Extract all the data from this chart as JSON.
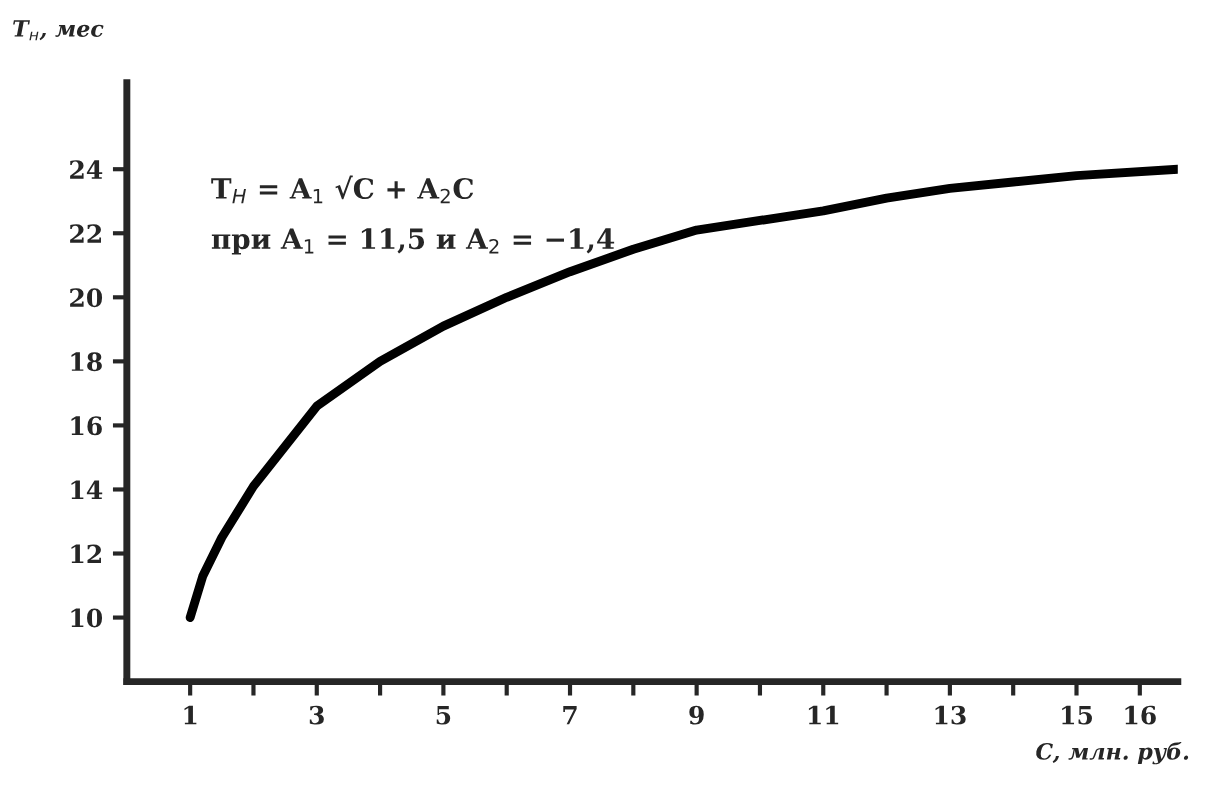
{
  "chart_data": {
    "type": "line",
    "xlabel": "C, млн. руб.",
    "ylabel": "T$_{н}$, мес",
    "annotations": [
      "T$_{Н}$ = A$_{1}$ √C + A$_{2}$C",
      "при A$_{1}$ = 11,5 и A$_{2}$ = −1,4"
    ],
    "x": [
      1,
      1.2,
      1.5,
      2,
      3,
      4,
      5,
      6,
      7,
      8,
      9,
      10,
      11,
      12,
      13,
      14,
      15,
      16.6
    ],
    "series": [
      {
        "color": "#000000",
        "values": [
          10,
          11.3,
          12.5,
          14.1,
          16.6,
          18.0,
          19.1,
          20.0,
          20.8,
          21.5,
          22.1,
          22.4,
          22.7,
          23.1,
          23.4,
          23.6,
          23.8,
          24.0
        ]
      }
    ],
    "xlim": [
      0,
      16.6
    ],
    "ylim": [
      8,
      26.7
    ],
    "xticks": [
      1,
      {
        "value": 2,
        "label": null
      },
      3,
      {
        "value": 4,
        "label": null
      },
      5,
      {
        "value": 6,
        "label": null
      },
      7,
      {
        "value": 8,
        "label": null
      },
      9,
      {
        "value": 10,
        "label": null
      },
      11,
      {
        "value": 12,
        "label": null
      },
      13,
      {
        "value": 14,
        "label": null
      },
      15,
      16
    ],
    "yticks": [
      10,
      12,
      14,
      16,
      18,
      20,
      22,
      24
    ],
    "grid": false,
    "legend": false,
    "marker": "none",
    "line_style": "solid"
  }
}
